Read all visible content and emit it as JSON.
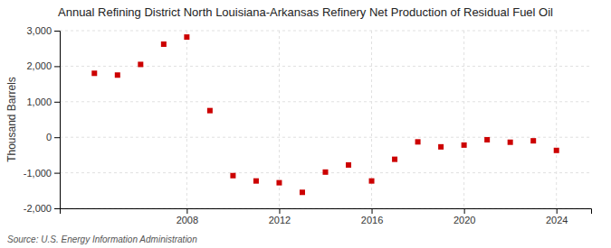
{
  "chart_data": {
    "type": "scatter",
    "title": "Annual Refining District North Louisiana-Arkansas Refinery Net Production of Residual Fuel Oil",
    "ylabel": "Thousand Barrels",
    "source": "Source: U.S. Energy Information Administration",
    "x": [
      2004,
      2005,
      2006,
      2007,
      2008,
      2009,
      2010,
      2011,
      2012,
      2013,
      2014,
      2015,
      2016,
      2017,
      2018,
      2019,
      2020,
      2021,
      2022,
      2023,
      2024
    ],
    "values": [
      1800,
      1750,
      2050,
      2620,
      2820,
      750,
      -1080,
      -1230,
      -1280,
      -1550,
      -980,
      -780,
      -1230,
      -620,
      -130,
      -270,
      -220,
      -70,
      -140,
      -100,
      -370
    ],
    "color": "#cc0000",
    "marker": "square",
    "xlim": [
      2002.5,
      2025.5
    ],
    "xticks": [
      2008,
      2012,
      2016,
      2020,
      2024
    ],
    "ylim": [
      -2000,
      3000
    ],
    "yticks": [
      {
        "value": -2000,
        "label": "-2,000"
      },
      {
        "value": -1000,
        "label": "-1,000"
      },
      0,
      {
        "value": 1000,
        "label": "1,000"
      },
      {
        "value": 2000,
        "label": "2,000"
      },
      {
        "value": 3000,
        "label": "3,000"
      }
    ],
    "grid": true
  }
}
